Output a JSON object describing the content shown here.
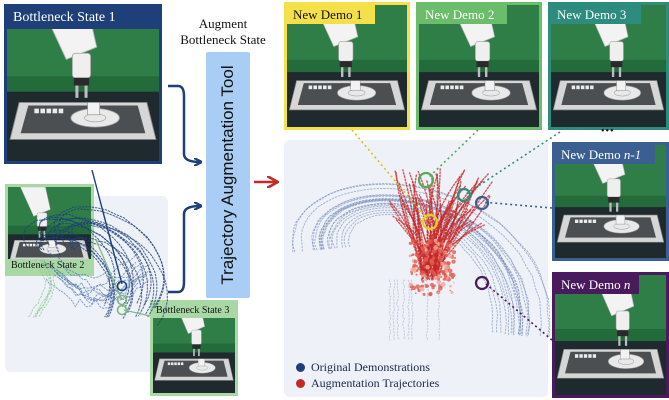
{
  "header": {
    "line1": "Augment",
    "line2": "Bottleneck State"
  },
  "tool": {
    "label": "Trajectory Augmentation Tool"
  },
  "bottlenecks": [
    {
      "id": "b1",
      "label": "Bottleneck State 1",
      "color": "#1f3f78",
      "text_color": "#ffffff"
    },
    {
      "id": "b2",
      "label": "Bottleneck State 2",
      "color": "#a9d8a6",
      "text_color": "#111111"
    },
    {
      "id": "b3",
      "label": "Bottleneck State 3",
      "color": "#a9d8a6",
      "text_color": "#111111"
    }
  ],
  "demos": [
    {
      "id": "d1",
      "label": "New Demo 1",
      "color": "#f4e14a",
      "text_color": "#111111"
    },
    {
      "id": "d2",
      "label": "New Demo 2",
      "color": "#6bbd6b",
      "text_color": "#ffffff"
    },
    {
      "id": "d3",
      "label": "New Demo 3",
      "color": "#2e8c7e",
      "text_color": "#ffffff"
    },
    {
      "id": "dn1",
      "label_prefix": "New Demo ",
      "label_italic": "n-1",
      "color": "#3c5f92",
      "text_color": "#ffffff"
    },
    {
      "id": "dn",
      "label_prefix": "New Demo ",
      "label_italic": "n",
      "color": "#4a1a5e",
      "text_color": "#ffffff"
    }
  ],
  "ellipsis": "•••",
  "legend": [
    {
      "label": "Original Demonstrations",
      "color": "#1f3f78"
    },
    {
      "label": "Augmentation Trajectories",
      "color": "#c62828"
    }
  ],
  "colors": {
    "original": "#1f3f78",
    "augmented": "#c62828",
    "arrow_blue": "#1f3f78",
    "arrow_red": "#c62828"
  }
}
